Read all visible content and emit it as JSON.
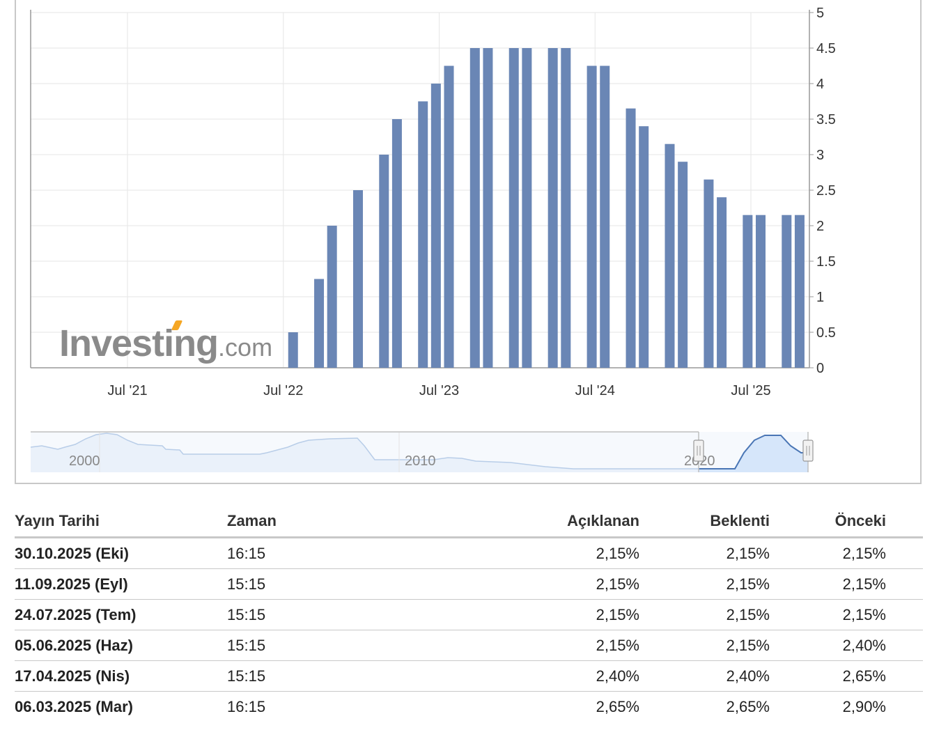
{
  "chart_data": {
    "type": "bar",
    "title": "",
    "xlabel": "",
    "ylabel": "",
    "ylim": [
      0,
      5
    ],
    "y_ticks": [
      "0",
      "0.5",
      "1",
      "1.5",
      "2",
      "2.5",
      "3",
      "3.5",
      "4",
      "4.5",
      "5"
    ],
    "x_ticks": [
      "Jul '21",
      "Jul '22",
      "Jul '23",
      "Jul '24",
      "Jul '25"
    ],
    "y_axis_position": "right",
    "grid": true,
    "bar_color": "#6a86b5",
    "dates": [
      "2022-07",
      "2022-09",
      "2022-10",
      "2022-12",
      "2023-02",
      "2023-03",
      "2023-05",
      "2023-06",
      "2023-07",
      "2023-09",
      "2023-10",
      "2023-12",
      "2024-01",
      "2024-03",
      "2024-04",
      "2024-06",
      "2024-07",
      "2024-09",
      "2024-10",
      "2024-12",
      "2025-01",
      "2025-03",
      "2025-04",
      "2025-06",
      "2025-07",
      "2025-09",
      "2025-10"
    ],
    "values": [
      0.5,
      1.25,
      2.0,
      2.5,
      3.0,
      3.5,
      3.75,
      4.0,
      4.25,
      4.5,
      4.5,
      4.5,
      4.5,
      4.5,
      4.5,
      4.25,
      4.25,
      3.65,
      3.4,
      3.15,
      2.9,
      2.65,
      2.4,
      2.15,
      2.15,
      2.15,
      2.15
    ]
  },
  "navigator": {
    "labels": [
      "2000",
      "2010",
      "2020"
    ],
    "line_color": "#4a76b5",
    "fill_color": "#d6e6fa"
  },
  "logo": {
    "brand": "Investing",
    "suffix": ".com"
  },
  "table": {
    "headers": {
      "date": "Yayın Tarihi",
      "time": "Zaman",
      "actual": "Açıklanan",
      "forecast": "Beklenti",
      "previous": "Önceki"
    },
    "rows": [
      {
        "date": "30.10.2025 (Eki)",
        "time": "16:15",
        "actual": "2,15%",
        "forecast": "2,15%",
        "previous": "2,15%"
      },
      {
        "date": "11.09.2025 (Eyl)",
        "time": "15:15",
        "actual": "2,15%",
        "forecast": "2,15%",
        "previous": "2,15%"
      },
      {
        "date": "24.07.2025 (Tem)",
        "time": "15:15",
        "actual": "2,15%",
        "forecast": "2,15%",
        "previous": "2,15%"
      },
      {
        "date": "05.06.2025 (Haz)",
        "time": "15:15",
        "actual": "2,15%",
        "forecast": "2,15%",
        "previous": "2,40%"
      },
      {
        "date": "17.04.2025 (Nis)",
        "time": "15:15",
        "actual": "2,40%",
        "forecast": "2,40%",
        "previous": "2,65%"
      },
      {
        "date": "06.03.2025 (Mar)",
        "time": "16:15",
        "actual": "2,65%",
        "forecast": "2,65%",
        "previous": "2,90%"
      }
    ]
  }
}
